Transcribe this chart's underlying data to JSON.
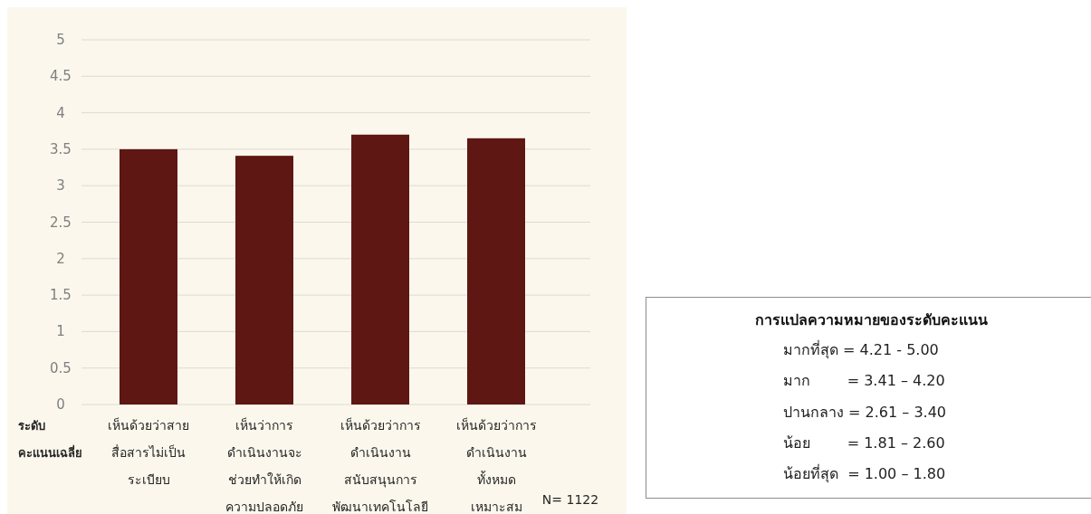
{
  "chart_data": [
    {
      "type": "bar",
      "ylabel": "ระดับ\nคะแนนเฉลี่ย",
      "categories": [
        "เห็นด้วยว่าสาย\nสื่อสารไม่เป็น\nระเบียบ",
        "เห็นว่าการ\nดำเนินงานจะ\nช่วยทำให้เกิด\nความปลอดภัย",
        "เห็นด้วยว่าการ\nดำเนินงาน\nสนับสนุนการ\nพัฒนาเทคโนโลยี",
        "เห็นด้วยว่าการ\nดำเนินงาน\nทั้งหมด\nเหมาะสม"
      ],
      "values": [
        3.5,
        3.41,
        3.7,
        3.65
      ],
      "color": "#5e1713",
      "ylim": [
        0,
        5
      ],
      "yticks": [
        0,
        0.5,
        1,
        1.5,
        2,
        2.5,
        3,
        3.5,
        4,
        4.5,
        5
      ],
      "grid": "y",
      "annotations": [
        "N= 1122"
      ]
    },
    {
      "type": "other",
      "title": "การแปลความหมายของระดับคะแนน",
      "annotations": [
        "มากที่สุด = 4.21 - 5.00",
        "มาก        = 3.41 – 4.20",
        "ปานกลาง = 2.61 – 3.40",
        "น้อย        = 1.81 – 2.60",
        "น้อยที่สุด  = 1.00 – 1.80"
      ]
    }
  ]
}
